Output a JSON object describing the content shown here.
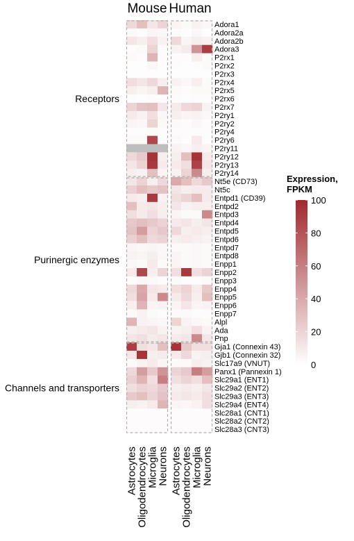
{
  "chart_data": {
    "type": "heatmap",
    "species": [
      "Mouse",
      "Human"
    ],
    "cell_types": [
      "Astrocytes",
      "Oligodendrocytes",
      "Microglia",
      "Neurons"
    ],
    "groups": [
      {
        "name": "Receptors",
        "start": 0,
        "end": 18
      },
      {
        "name": "Purinergic enzymes",
        "start": 19,
        "end": 38
      },
      {
        "name": "Channels and transporters",
        "start": 39,
        "end": 49
      }
    ],
    "genes": [
      "Adora1",
      "Adora2a",
      "Adora2b",
      "Adora3",
      "P2rx1",
      "P2rx2",
      "P2rx3",
      "P2rx4",
      "P2rx5",
      "P2rx6",
      "P2rx7",
      "P2ry1",
      "P2ry2",
      "P2ry4",
      "P2ry6",
      "P2ry11",
      "P2ry12",
      "P2ry13",
      "P2ry14",
      "Nt5e (CD73)",
      "Nt5c",
      "Entpd1 (CD39)",
      "Entpd2",
      "Entpd3",
      "Entpd4",
      "Entpd5",
      "Entpd6",
      "Entpd7",
      "Entpd8",
      "Enpp1",
      "Enpp2",
      "Enpp3",
      "Enpp4",
      "Enpp5",
      "Enpp6",
      "Enpp7",
      "Alpl",
      "Ada",
      "Pnp",
      "Gja1 (Connexin 43)",
      "Gjb1 (Connexin 32)",
      "Slc17a9 (VNUT)",
      "Panx1 (Pannexin 1)",
      "Slc29a1 (ENT1)",
      "Slc29a2 (ENT2)",
      "Slc29a3 (ENT3)",
      "Slc29a4 (ENT4)",
      "Slc28a1 (CNT1)",
      "Slc28a2 (CNT2)",
      "Slc28a3 (CNT3)"
    ],
    "mouse": [
      [
        18,
        30,
        12,
        20
      ],
      [
        3,
        2,
        5,
        4
      ],
      [
        12,
        8,
        15,
        6
      ],
      [
        2,
        3,
        20,
        2
      ],
      [
        3,
        2,
        35,
        2
      ],
      [
        1,
        1,
        4,
        1
      ],
      [
        1,
        1,
        1,
        1
      ],
      [
        16,
        12,
        18,
        8
      ],
      [
        8,
        5,
        8,
        35
      ],
      [
        2,
        1,
        2,
        2
      ],
      [
        20,
        28,
        30,
        12
      ],
      [
        10,
        6,
        15,
        4
      ],
      [
        5,
        4,
        20,
        3
      ],
      [
        2,
        2,
        3,
        2
      ],
      [
        3,
        3,
        85,
        2
      ],
      [
        null,
        null,
        null,
        null
      ],
      [
        18,
        25,
        95,
        8
      ],
      [
        12,
        20,
        92,
        10
      ],
      [
        8,
        6,
        30,
        5
      ],
      [
        12,
        20,
        8,
        18
      ],
      [
        22,
        30,
        25,
        28
      ],
      [
        10,
        8,
        92,
        6
      ],
      [
        30,
        10,
        12,
        8
      ],
      [
        15,
        10,
        15,
        8
      ],
      [
        25,
        30,
        25,
        20
      ],
      [
        28,
        45,
        20,
        25
      ],
      [
        22,
        30,
        18,
        20
      ],
      [
        5,
        4,
        5,
        4
      ],
      [
        6,
        5,
        8,
        4
      ],
      [
        4,
        3,
        10,
        3
      ],
      [
        10,
        85,
        8,
        20
      ],
      [
        2,
        4,
        3,
        2
      ],
      [
        18,
        40,
        12,
        10
      ],
      [
        15,
        42,
        10,
        55
      ],
      [
        8,
        35,
        5,
        6
      ],
      [
        3,
        6,
        3,
        2
      ],
      [
        35,
        6,
        5,
        4
      ],
      [
        8,
        10,
        12,
        6
      ],
      [
        12,
        15,
        10,
        12
      ],
      [
        90,
        15,
        12,
        30
      ],
      [
        12,
        95,
        8,
        10
      ],
      [
        3,
        6,
        10,
        5
      ],
      [
        18,
        45,
        25,
        50
      ],
      [
        22,
        35,
        15,
        60
      ],
      [
        15,
        20,
        18,
        25
      ],
      [
        25,
        30,
        20,
        28
      ],
      [
        8,
        6,
        10,
        35
      ],
      [
        2,
        2,
        2,
        2
      ],
      [
        2,
        2,
        2,
        2
      ],
      [
        2,
        2,
        2,
        2
      ]
    ],
    "human": [
      [
        5,
        3,
        6,
        4
      ],
      [
        3,
        2,
        4,
        2
      ],
      [
        18,
        5,
        8,
        6
      ],
      [
        6,
        10,
        50,
        90
      ],
      [
        2,
        2,
        8,
        3
      ],
      [
        2,
        1,
        2,
        3
      ],
      [
        1,
        1,
        1,
        1
      ],
      [
        6,
        4,
        8,
        3
      ],
      [
        3,
        2,
        3,
        3
      ],
      [
        2,
        1,
        2,
        2
      ],
      [
        10,
        18,
        20,
        6
      ],
      [
        8,
        5,
        6,
        4
      ],
      [
        3,
        2,
        4,
        2
      ],
      [
        2,
        2,
        2,
        2
      ],
      [
        3,
        2,
        10,
        2
      ],
      [
        6,
        4,
        8,
        5
      ],
      [
        8,
        30,
        95,
        10
      ],
      [
        10,
        15,
        88,
        12
      ],
      [
        6,
        20,
        55,
        8
      ],
      [
        40,
        30,
        18,
        25
      ],
      [
        12,
        8,
        10,
        10
      ],
      [
        15,
        20,
        30,
        10
      ],
      [
        12,
        6,
        8,
        8
      ],
      [
        5,
        3,
        3,
        55
      ],
      [
        10,
        12,
        8,
        12
      ],
      [
        18,
        8,
        10,
        8
      ],
      [
        8,
        10,
        8,
        6
      ],
      [
        3,
        3,
        4,
        3
      ],
      [
        5,
        3,
        4,
        3
      ],
      [
        5,
        3,
        4,
        3
      ],
      [
        15,
        92,
        15,
        20
      ],
      [
        3,
        2,
        2,
        3
      ],
      [
        15,
        20,
        10,
        25
      ],
      [
        10,
        18,
        8,
        30
      ],
      [
        5,
        12,
        5,
        6
      ],
      [
        3,
        3,
        2,
        2
      ],
      [
        20,
        6,
        4,
        3
      ],
      [
        6,
        8,
        15,
        6
      ],
      [
        10,
        12,
        55,
        12
      ],
      [
        95,
        25,
        15,
        15
      ],
      [
        10,
        18,
        6,
        8
      ],
      [
        3,
        3,
        8,
        6
      ],
      [
        20,
        25,
        60,
        45
      ],
      [
        15,
        20,
        15,
        30
      ],
      [
        8,
        10,
        8,
        12
      ],
      [
        10,
        12,
        10,
        15
      ],
      [
        5,
        4,
        6,
        15
      ],
      [
        2,
        2,
        2,
        2
      ],
      [
        2,
        2,
        2,
        2
      ],
      [
        2,
        2,
        2,
        2
      ]
    ],
    "legend": {
      "title_line1": "Expression,",
      "title_line2": "FPKM",
      "min": 0,
      "max": 100,
      "ticks": [
        0,
        20,
        40,
        60,
        80,
        100
      ],
      "low_color": "#ffffff",
      "high_color": "#a0282e"
    },
    "missing_color": "#bebebe",
    "box_color": "#b0b0b0"
  }
}
